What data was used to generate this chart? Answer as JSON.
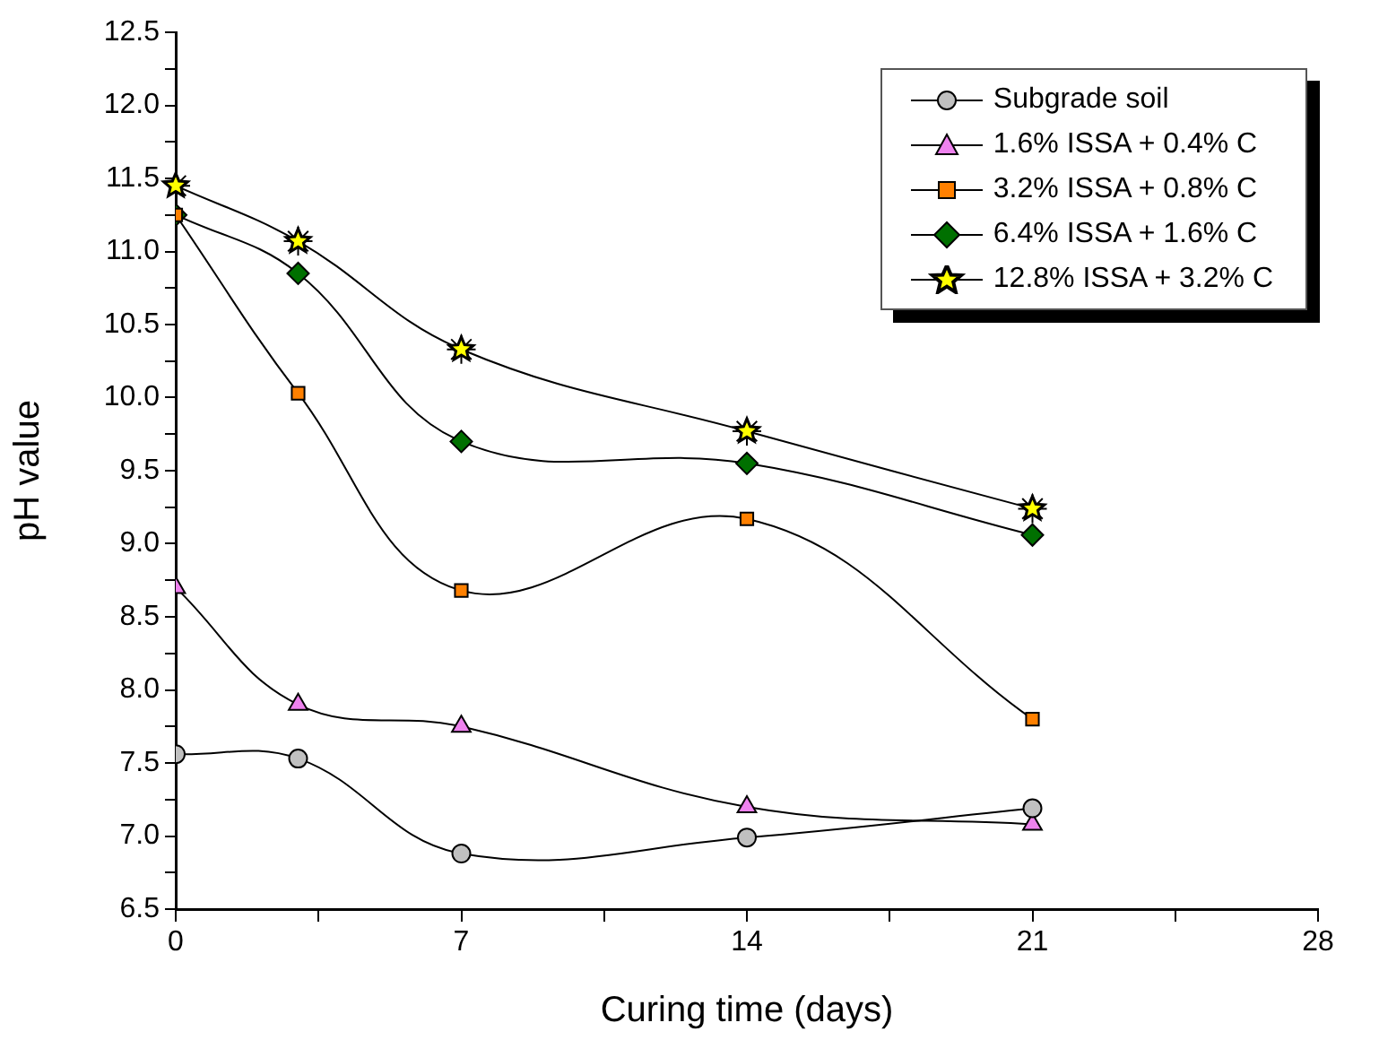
{
  "chart_data": {
    "type": "line",
    "xlabel": "Curing time (days)",
    "ylabel": "pH value",
    "x": [
      0,
      3,
      7,
      14,
      21
    ],
    "xlim": [
      0,
      28
    ],
    "xticks": [
      0,
      {
        "value": 3.5,
        "label": null
      },
      7,
      {
        "value": 10.5,
        "label": null
      },
      14,
      {
        "value": 17.5,
        "label": null
      },
      21,
      {
        "value": 24.5,
        "label": null
      },
      28
    ],
    "ylim": [
      6.5,
      12.5
    ],
    "yticks": [
      {
        "value": 6.5,
        "label": "6.5"
      },
      {
        "value": 6.75,
        "label": null
      },
      {
        "value": 7,
        "label": "7.0"
      },
      {
        "value": 7.25,
        "label": null
      },
      {
        "value": 7.5,
        "label": "7.5"
      },
      {
        "value": 7.75,
        "label": null
      },
      {
        "value": 8,
        "label": "8.0"
      },
      {
        "value": 8.25,
        "label": null
      },
      {
        "value": 8.5,
        "label": "8.5"
      },
      {
        "value": 8.75,
        "label": null
      },
      {
        "value": 9,
        "label": "9.0"
      },
      {
        "value": 9.25,
        "label": null
      },
      {
        "value": 9.5,
        "label": "9.5"
      },
      {
        "value": 9.75,
        "label": null
      },
      {
        "value": 10,
        "label": "10.0"
      },
      {
        "value": 10.25,
        "label": null
      },
      {
        "value": 10.5,
        "label": "10.5"
      },
      {
        "value": 10.75,
        "label": null
      },
      {
        "value": 11,
        "label": "11.0"
      },
      {
        "value": 11.25,
        "label": null
      },
      {
        "value": 11.5,
        "label": "11.5"
      },
      {
        "value": 11.75,
        "label": null
      },
      {
        "value": 12,
        "label": "12.0"
      },
      {
        "value": 12.25,
        "label": null
      },
      {
        "value": 12.5,
        "label": "12.5"
      }
    ],
    "grid": false,
    "legend": "top right",
    "line_style": "solid",
    "series": [
      {
        "name": "Subgrade soil",
        "color": "#c0c0c0",
        "marker": "circle",
        "values": [
          7.56,
          7.53,
          6.88,
          6.99,
          7.19
        ]
      },
      {
        "name": "1.6% ISSA + 0.4% C",
        "color": "#ee82ee",
        "marker": "triangle",
        "values": [
          8.7,
          7.9,
          7.75,
          7.2,
          7.08
        ]
      },
      {
        "name": "3.2% ISSA + 0.8% C",
        "color": "#ff8000",
        "marker": "square",
        "values": [
          11.25,
          10.03,
          8.68,
          9.17,
          7.8
        ]
      },
      {
        "name": "6.4% ISSA + 1.6% C",
        "color": "#007000",
        "marker": "diamond",
        "values": [
          11.25,
          10.85,
          9.7,
          9.55,
          9.06
        ]
      },
      {
        "name": "12.8% ISSA + 3.2% C",
        "color": "#ffff00",
        "marker": "star",
        "values": [
          11.45,
          11.07,
          10.33,
          9.77,
          9.24
        ]
      }
    ]
  }
}
